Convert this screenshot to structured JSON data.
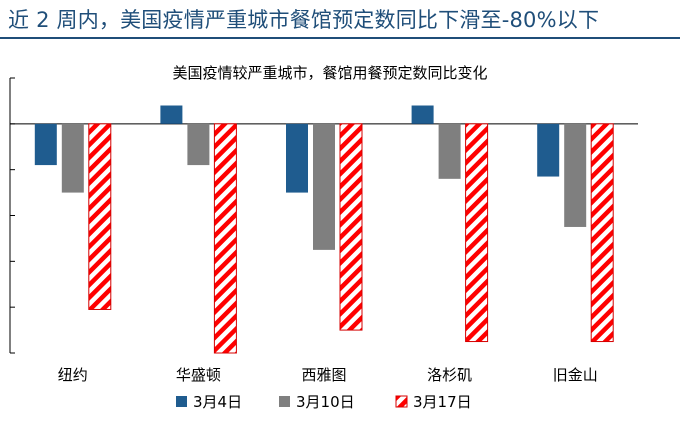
{
  "header": {
    "title": "近 2 周内，美国疫情严重城市餐馆预定数同比下滑至-80%以下"
  },
  "colors": {
    "title_text": "#1f4e79",
    "series1": "#1f5c8f",
    "series2": "#7f7f7f",
    "series3_stripe": "#ff0000",
    "series3_border": "#d40000",
    "axis": "#000000"
  },
  "chart_data": {
    "type": "bar",
    "title": "美国疫情较严重城市，餐馆用餐预定数同比变化",
    "xlabel": "",
    "ylabel": "",
    "ylim": [
      -100,
      20
    ],
    "grid": false,
    "legend": "bottom",
    "categories": [
      "纽约",
      "华盛顿",
      "西雅图",
      "洛杉矶",
      "旧金山"
    ],
    "series": [
      {
        "name": "3月4日",
        "values": [
          -18,
          8,
          -30,
          8,
          -23
        ],
        "pattern": "solid"
      },
      {
        "name": "3月10日",
        "values": [
          -30,
          -18,
          -55,
          -24,
          -45
        ],
        "pattern": "solid"
      },
      {
        "name": "3月17日",
        "values": [
          -81,
          -100,
          -90,
          -95,
          -95
        ],
        "pattern": "hatched"
      }
    ]
  }
}
